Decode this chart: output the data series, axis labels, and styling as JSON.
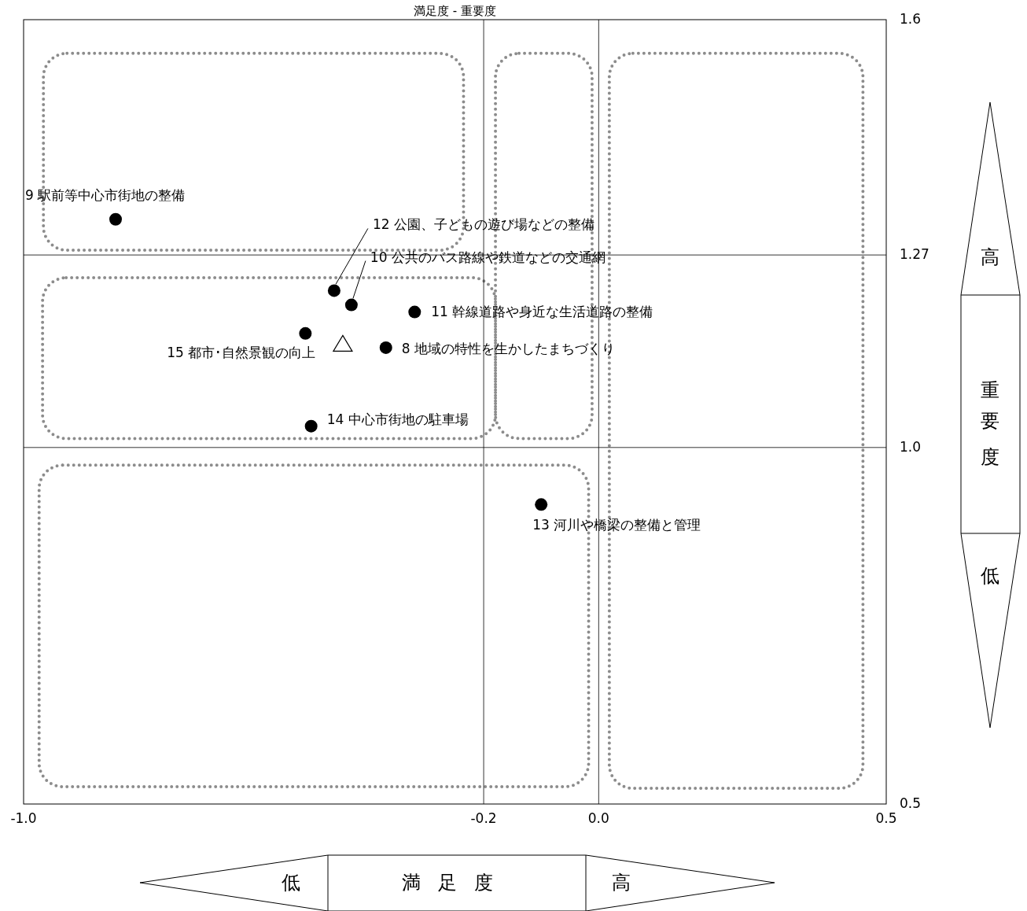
{
  "chart_data": {
    "type": "scatter",
    "title": "満足度 - 重要度",
    "xlim": [
      -1.0,
      0.5
    ],
    "ylim": [
      0.5,
      1.6
    ],
    "xticks": [
      {
        "value": -1.0,
        "label": "-1.0"
      },
      {
        "value": -0.2,
        "label": "-0.2"
      },
      {
        "value": 0.0,
        "label": "0.0"
      },
      {
        "value": 0.5,
        "label": "0.5"
      }
    ],
    "yticks": [
      {
        "value": 0.5,
        "label": "0.5"
      },
      {
        "value": 1.0,
        "label": "1.0"
      },
      1.27,
      {
        "value": 1.6,
        "label": "1.6"
      }
    ],
    "grid": false,
    "series": [
      {
        "color": "#000000",
        "marker": "circle",
        "x": [
          -0.84,
          -0.46,
          -0.43,
          -0.32,
          -0.37,
          -0.51,
          -0.5,
          -0.1
        ],
        "values": [
          1.32,
          1.22,
          1.2,
          1.19,
          1.14,
          1.16,
          1.03,
          0.92
        ]
      },
      {
        "color": "#000000",
        "marker": "triangle",
        "x": [
          -0.445
        ],
        "values": [
          1.145
        ]
      }
    ],
    "ref_lines": [
      {
        "axis": "x",
        "value": -0.2,
        "color": "#000000"
      },
      {
        "axis": "x",
        "value": 0.0,
        "color": "#000000"
      },
      {
        "axis": "y",
        "value": 1.27,
        "color": "#000000"
      },
      {
        "axis": "y",
        "value": 1.0,
        "color": "#000000"
      }
    ],
    "annotations": [
      {
        "text": "9 駅前等中心市街地の整備",
        "x": -0.84,
        "y": 1.32
      },
      {
        "text": "12 公園、子どもの遊び場などの整備",
        "x": -0.46,
        "y": 1.22
      },
      {
        "text": "10 公共のバス路線や鉄道などの交通網",
        "x": -0.43,
        "y": 1.2
      },
      {
        "text": "11 幹線道路や身近な生活道路の整備",
        "x": -0.32,
        "y": 1.19
      },
      {
        "text": "8 地域の特性を生かしたまちづくり",
        "x": -0.37,
        "y": 1.14
      },
      {
        "text": "15 都市･自然景観の向上",
        "x": -0.51,
        "y": 1.16
      },
      {
        "text": "14 中心市街地の駐車場",
        "x": -0.5,
        "y": 1.03
      },
      {
        "text": "13 河川や橋梁の整備と管理",
        "x": -0.1,
        "y": 0.92
      },
      "高",
      "重要度",
      "低",
      "低",
      "満足度",
      "高"
    ]
  }
}
